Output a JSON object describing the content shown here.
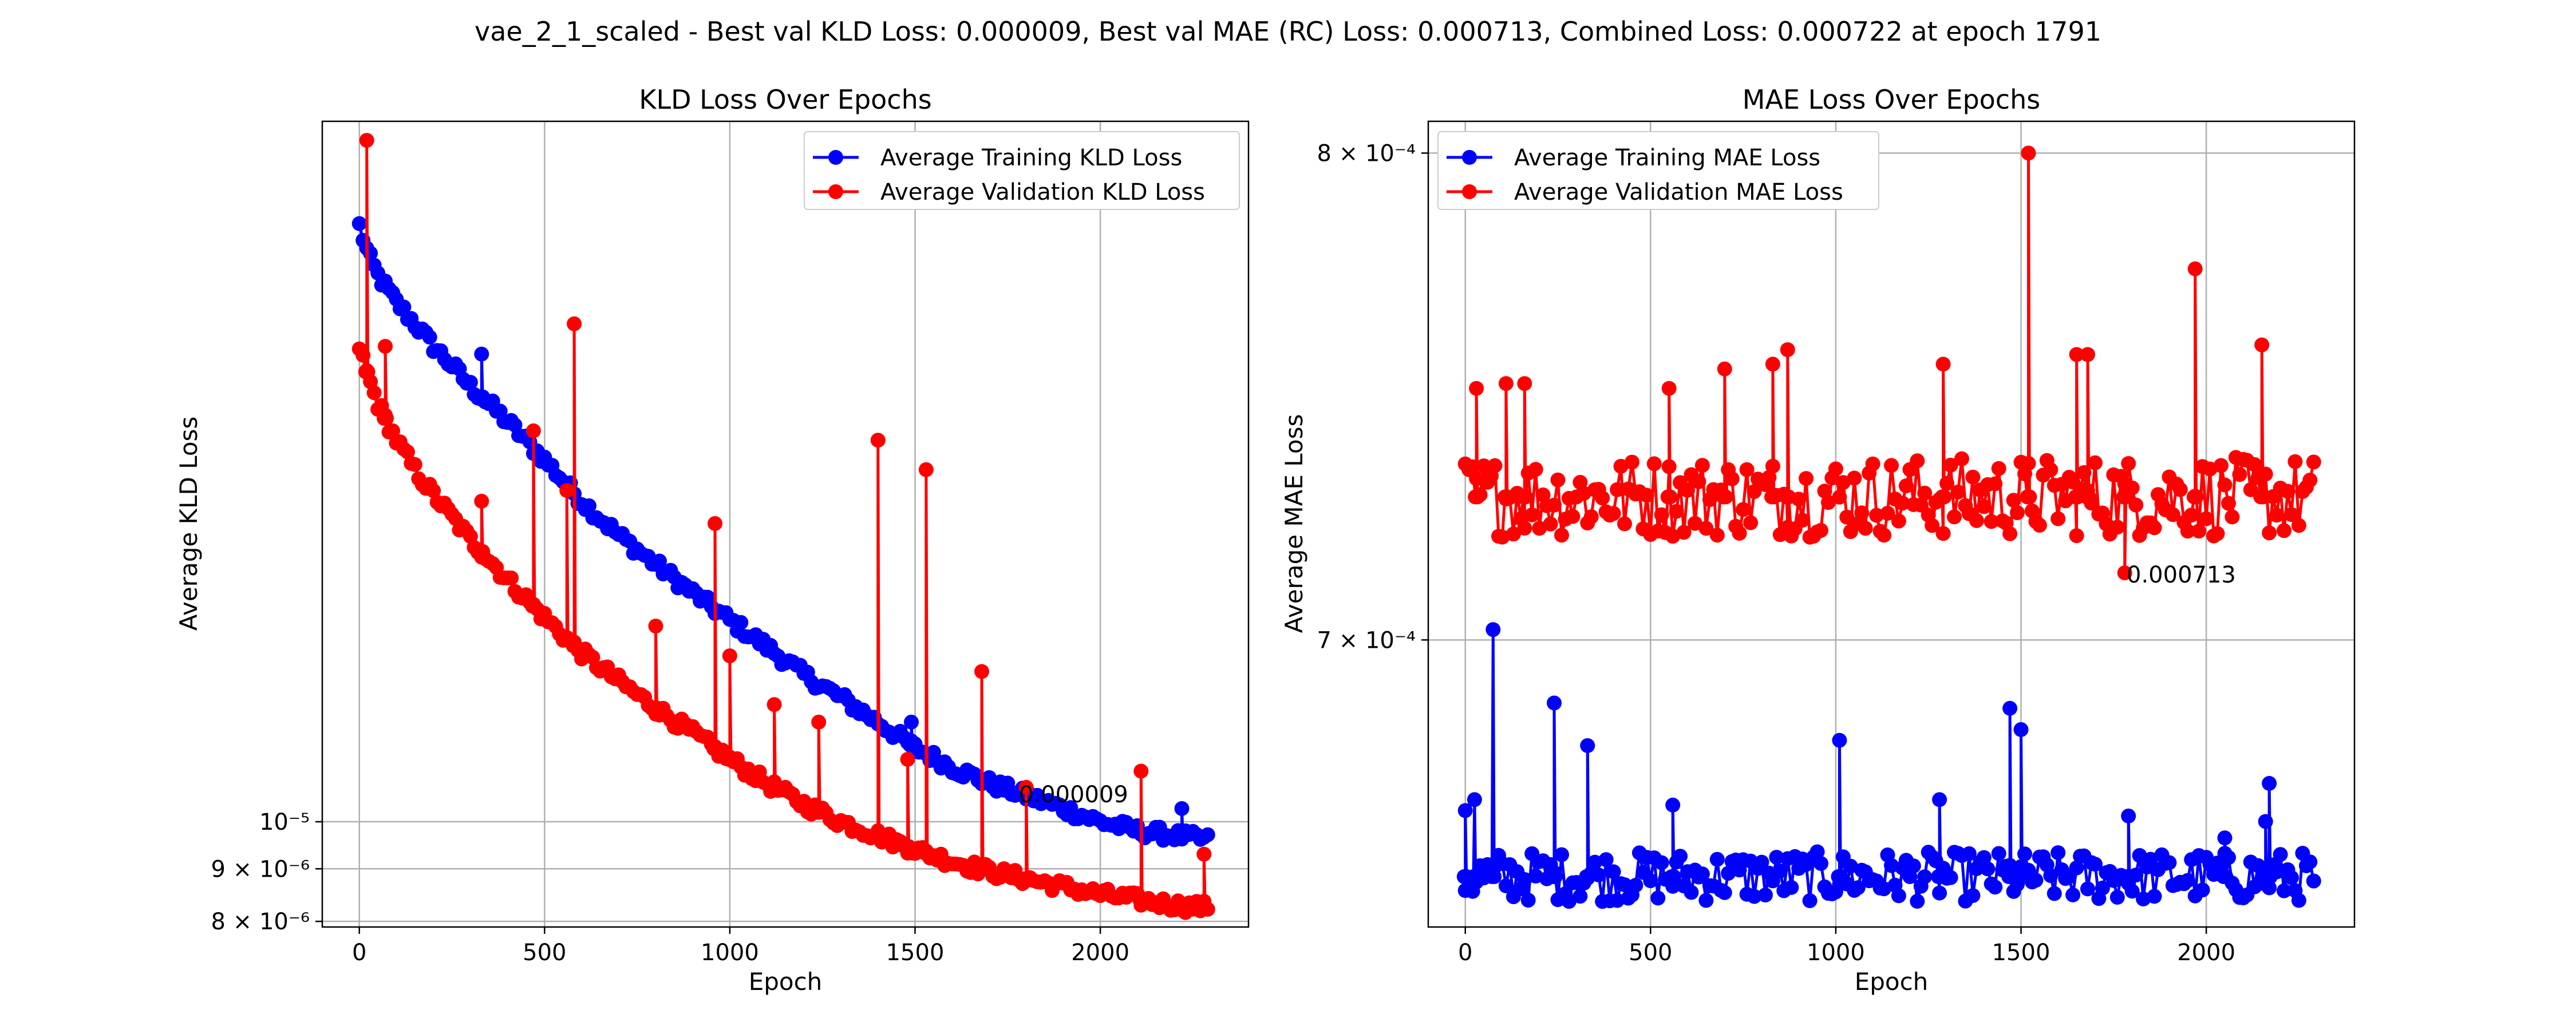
{
  "suptitle": "vae_2_1_scaled - Best val KLD Loss: 0.000009, Best val MAE (RC) Loss: 0.000713, Combined Loss: 0.000722 at epoch 1791",
  "colors": {
    "training": "#0000ff",
    "validation": "#ff0000",
    "grid": "#b0b0b0"
  },
  "chart_data": [
    {
      "type": "line",
      "title": "KLD Loss Over Epochs",
      "xlabel": "Epoch",
      "ylabel": "Average KLD Loss",
      "yscale": "log",
      "xlim": [
        -100,
        2400
      ],
      "ylim": [
        7.9e-06,
        4.8e-05
      ],
      "x_ticks": [
        0,
        500,
        1000,
        1500,
        2000
      ],
      "x_tick_labels": [
        "0",
        "500",
        "1000",
        "1500",
        "2000"
      ],
      "y_ticks": [
        1e-05,
        9e-06,
        8e-06
      ],
      "y_tick_labels": [
        "10⁻⁵",
        "9 × 10⁻⁶",
        "8 × 10⁻⁶"
      ],
      "grid": true,
      "legend_location": "upper right",
      "annotation": {
        "text": "0.000009",
        "x": 1791,
        "y": 9.1e-06
      },
      "series": [
        {
          "name": "Average Training KLD Loss",
          "color": "#0000ff",
          "x": [
            0,
            25,
            50,
            100,
            150,
            200,
            250,
            300,
            350,
            400,
            500,
            600,
            700,
            800,
            900,
            1000,
            1100,
            1200,
            1300,
            1400,
            1500,
            1600,
            1700,
            1800,
            1900,
            2000,
            2100,
            2200,
            2290
          ],
          "y": [
            3.8e-05,
            3.55e-05,
            3.4e-05,
            3.2e-05,
            3.05e-05,
            2.9e-05,
            2.78e-05,
            2.65e-05,
            2.55e-05,
            2.45e-05,
            2.25e-05,
            2.05e-05,
            1.9e-05,
            1.78e-05,
            1.67e-05,
            1.57e-05,
            1.48e-05,
            1.39e-05,
            1.32e-05,
            1.25e-05,
            1.18e-05,
            1.13e-05,
            1.09e-05,
            1.06e-05,
            1.03e-05,
            1e-05,
            9.8e-06,
            9.7e-06,
            9.6e-06
          ],
          "spikes": [
            [
              330,
              2.85e-05
            ],
            [
              1490,
              1.25e-05
            ],
            [
              2220,
              1.03e-05
            ]
          ]
        },
        {
          "name": "Average Validation KLD Loss",
          "color": "#ff0000",
          "x": [
            0,
            25,
            50,
            100,
            150,
            200,
            250,
            300,
            350,
            400,
            500,
            600,
            700,
            800,
            900,
            1000,
            1100,
            1200,
            1300,
            1400,
            1500,
            1600,
            1700,
            1800,
            1900,
            2000,
            2100,
            2200,
            2290
          ],
          "y": [
            2.9e-05,
            2.7e-05,
            2.55e-05,
            2.35e-05,
            2.2e-05,
            2.08e-05,
            1.98e-05,
            1.88e-05,
            1.8e-05,
            1.72e-05,
            1.58e-05,
            1.46e-05,
            1.37e-05,
            1.29e-05,
            1.22e-05,
            1.15e-05,
            1.09e-05,
            1.04e-05,
            1e-05,
            9.7e-06,
            9.4e-06,
            9.15e-06,
            8.95e-06,
            8.8e-06,
            8.65e-06,
            8.5e-06,
            8.4e-06,
            8.3e-06,
            8.25e-06
          ],
          "spikes": [
            [
              20,
              4.6e-05
            ],
            [
              70,
              2.9e-05
            ],
            [
              330,
              2.05e-05
            ],
            [
              470,
              2.4e-05
            ],
            [
              580,
              3.05e-05
            ],
            [
              560,
              2.1e-05
            ],
            [
              800,
              1.55e-05
            ],
            [
              960,
              1.95e-05
            ],
            [
              1000,
              1.45e-05
            ],
            [
              1120,
              1.3e-05
            ],
            [
              1240,
              1.25e-05
            ],
            [
              1400,
              2.35e-05
            ],
            [
              1480,
              1.15e-05
            ],
            [
              1530,
              2.2e-05
            ],
            [
              1680,
              1.4e-05
            ],
            [
              1800,
              1.08e-05
            ],
            [
              2110,
              1.12e-05
            ],
            [
              2280,
              9.3e-06
            ]
          ]
        }
      ]
    },
    {
      "type": "line",
      "title": "MAE Loss Over Epochs",
      "xlabel": "Epoch",
      "ylabel": "Average MAE Loss",
      "yscale": "log",
      "xlim": [
        -100,
        2400
      ],
      "ylim": [
        0.000647,
        0.000807
      ],
      "x_ticks": [
        0,
        500,
        1000,
        1500,
        2000
      ],
      "x_tick_labels": [
        "0",
        "500",
        "1000",
        "1500",
        "2000"
      ],
      "y_ticks": [
        0.0008,
        0.0007
      ],
      "y_tick_labels": [
        "8 × 10⁻⁴",
        "7 × 10⁻⁴"
      ],
      "grid": true,
      "legend_location": "upper left",
      "annotation": {
        "text": "0.000713",
        "x": 1791,
        "y": 0.000713
      },
      "series": [
        {
          "name": "Average Training MAE Loss",
          "color": "#0000ff",
          "band": {
            "center": 0.000656,
            "spread": 4.5e-06
          },
          "spikes": [
            [
              0,
              0.000668
            ],
            [
              25,
              0.00067
            ],
            [
              75,
              0.000702
            ],
            [
              240,
              0.000688
            ],
            [
              330,
              0.00068
            ],
            [
              560,
              0.000669
            ],
            [
              1010,
              0.000681
            ],
            [
              1280,
              0.00067
            ],
            [
              1470,
              0.000687
            ],
            [
              1500,
              0.000683
            ],
            [
              1790,
              0.000667
            ],
            [
              2170,
              0.000673
            ],
            [
              2160,
              0.000666
            ],
            [
              2050,
              0.000663
            ]
          ]
        },
        {
          "name": "Average Validation MAE Loss",
          "color": "#ff0000",
          "band": {
            "center": 0.000728,
            "spread": 8e-06
          },
          "spikes": [
            [
              30,
              0.00075
            ],
            [
              110,
              0.000751
            ],
            [
              160,
              0.000751
            ],
            [
              550,
              0.00075
            ],
            [
              700,
              0.000754
            ],
            [
              830,
              0.000755
            ],
            [
              870,
              0.000758
            ],
            [
              1290,
              0.000755
            ],
            [
              1520,
              0.0008
            ],
            [
              1650,
              0.000757
            ],
            [
              1680,
              0.000757
            ],
            [
              1970,
              0.000775
            ],
            [
              2150,
              0.000759
            ],
            [
              1780,
              0.000713
            ]
          ]
        }
      ]
    }
  ]
}
